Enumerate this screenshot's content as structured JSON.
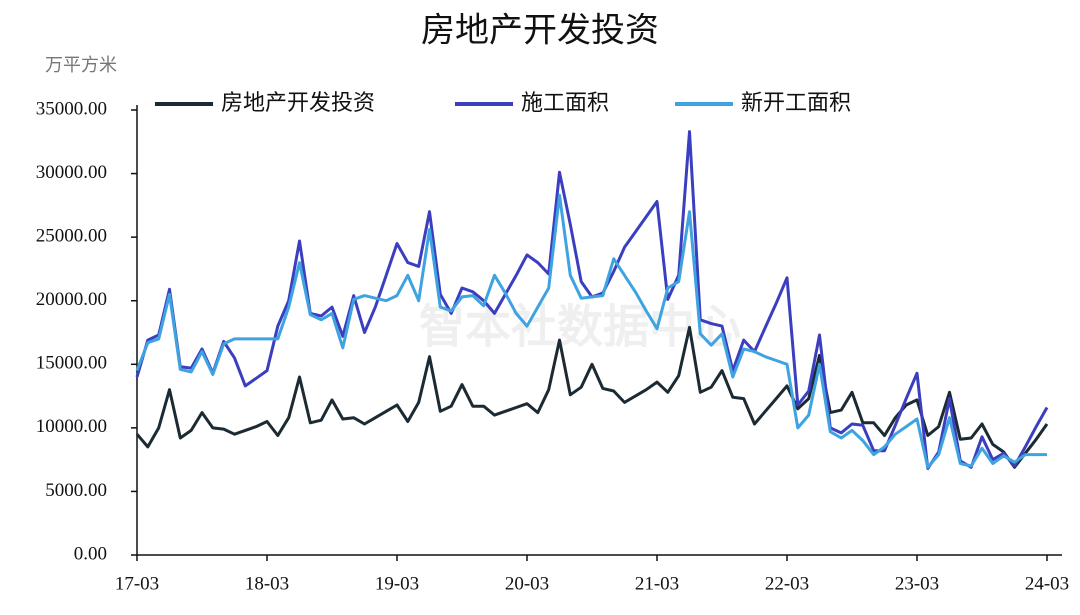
{
  "chart_data": {
    "type": "line",
    "title": "房地产开发投资",
    "y_unit": "万平方米",
    "watermark": "智本社数据中心",
    "categories": [
      "17-03",
      null,
      null,
      null,
      null,
      null,
      null,
      null,
      null,
      null,
      null,
      null,
      "18-03",
      null,
      null,
      null,
      null,
      null,
      null,
      null,
      null,
      null,
      null,
      null,
      "19-03",
      null,
      null,
      null,
      null,
      null,
      null,
      null,
      null,
      null,
      null,
      null,
      "20-03",
      null,
      null,
      null,
      null,
      null,
      null,
      null,
      null,
      null,
      null,
      null,
      "21-03",
      null,
      null,
      null,
      null,
      null,
      null,
      null,
      null,
      null,
      null,
      null,
      "22-03",
      null,
      null,
      null,
      null,
      null,
      null,
      null,
      null,
      null,
      null,
      null,
      "23-03",
      null,
      null,
      null,
      null,
      null,
      null,
      null,
      null,
      null,
      null,
      null,
      "24-03"
    ],
    "series": [
      {
        "name": "房地产开发投资",
        "color": "#1b2a33",
        "values": [
          9500,
          8500,
          10000,
          13000,
          9200,
          9800,
          11200,
          10000,
          9900,
          9500,
          9800,
          10100,
          10500,
          9400,
          10800,
          14000,
          10400,
          10600,
          12200,
          10700,
          10800,
          10300,
          10800,
          11300,
          11800,
          10500,
          12000,
          15600,
          11300,
          11700,
          13400,
          11700,
          11700,
          11000,
          11300,
          11600,
          11900,
          11200,
          13000,
          16900,
          12600,
          13200,
          15000,
          13100,
          12900,
          12000,
          12500,
          13000,
          13600,
          12800,
          14100,
          17900,
          12800,
          13200,
          14500,
          12400,
          12300,
          10300,
          11300,
          12300,
          13300,
          11500,
          12300,
          15700,
          11200,
          11400,
          12800,
          10400,
          10400,
          9400,
          10800,
          11800,
          12200,
          9400,
          10100,
          12800,
          9100,
          9200,
          10300,
          8700,
          8100,
          6900,
          8000,
          9100,
          10300
        ]
      },
      {
        "name": "施工面积",
        "color": "#3b3fbf",
        "values": [
          14000,
          16900,
          17300,
          20900,
          14800,
          14700,
          16200,
          14300,
          16800,
          15500,
          13300,
          13900,
          14500,
          18000,
          20000,
          24700,
          19000,
          18800,
          19500,
          17200,
          20400,
          17500,
          19500,
          22000,
          24500,
          23000,
          22700,
          27000,
          20500,
          19000,
          21000,
          20700,
          20000,
          19000,
          20500,
          22000,
          23600,
          23000,
          22100,
          30100,
          26000,
          21500,
          20300,
          20600,
          22300,
          24200,
          25400,
          26600,
          27800,
          20100,
          22000,
          33300,
          18500,
          18200,
          18000,
          14500,
          16900,
          16000,
          17900,
          19800,
          21800,
          11800,
          12900,
          17300,
          10000,
          9600,
          10300,
          10200,
          8200,
          8200,
          10200,
          12300,
          14300,
          6800,
          8100,
          12300,
          7400,
          6900,
          9300,
          7500,
          8000,
          7000,
          8500,
          10100,
          11600
        ]
      },
      {
        "name": "新开工面积",
        "color": "#3ea3e0",
        "values": [
          14500,
          16700,
          17000,
          20500,
          14600,
          14400,
          16000,
          14200,
          16600,
          17000,
          17000,
          17000,
          17000,
          17000,
          19500,
          23000,
          18900,
          18500,
          19000,
          16300,
          20100,
          20400,
          20200,
          20000,
          20400,
          22000,
          20000,
          25600,
          19500,
          19200,
          20300,
          20400,
          19600,
          22000,
          20600,
          19000,
          18000,
          19500,
          21000,
          28300,
          22000,
          20200,
          20300,
          20400,
          23300,
          22000,
          20700,
          19200,
          17800,
          21000,
          21500,
          27000,
          17400,
          16500,
          17400,
          14000,
          16200,
          16000,
          15600,
          15300,
          15000,
          10000,
          11000,
          15000,
          9700,
          9200,
          9800,
          9000,
          7900,
          8500,
          9500,
          10100,
          10700,
          6900,
          7900,
          10800,
          7200,
          7000,
          8400,
          7200,
          7800,
          7300,
          7900,
          7900,
          7900
        ]
      }
    ],
    "ylim": [
      0,
      35000
    ],
    "yticks": [
      {
        "value": 0,
        "label": "0.00"
      },
      {
        "value": 5000,
        "label": "5000.00"
      },
      {
        "value": 10000,
        "label": "10000.00"
      },
      {
        "value": 15000,
        "label": "15000.00"
      },
      {
        "value": 20000,
        "label": "20000.00"
      },
      {
        "value": 25000,
        "label": "25000.00"
      },
      {
        "value": 30000,
        "label": "30000.00"
      },
      {
        "value": 35000,
        "label": "35000.00"
      }
    ],
    "grid": false,
    "legend": "top"
  }
}
